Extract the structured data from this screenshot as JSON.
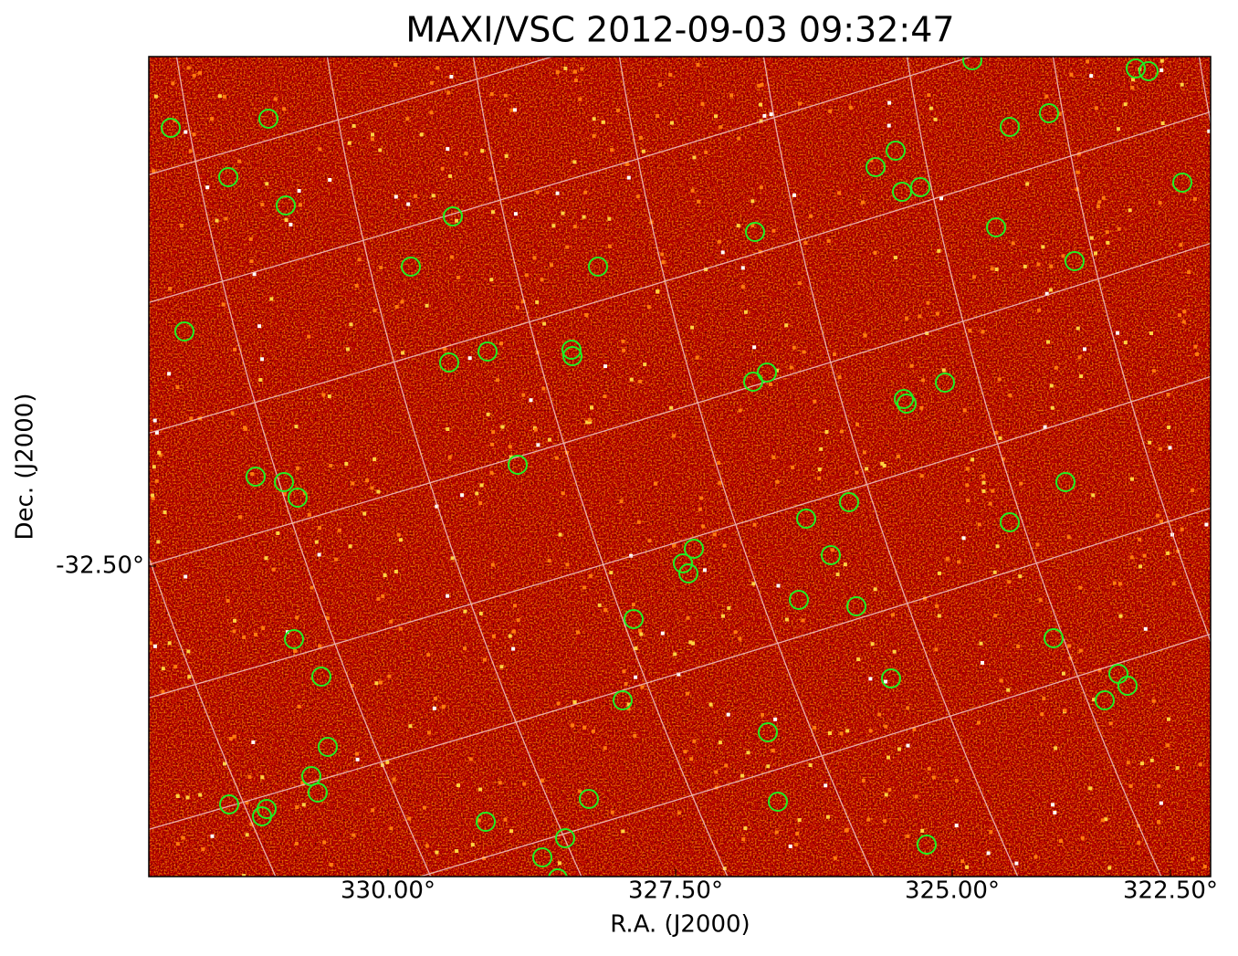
{
  "title": "MAXI/VSC 2012-09-03 09:32:47",
  "x_axis": {
    "label": "R.A. (J2000)",
    "ticks": [
      "330.00°",
      "327.50°",
      "325.00°",
      "322.50°"
    ]
  },
  "y_axis": {
    "label": "Dec. (J2000)",
    "ticks": [
      "-32.50°"
    ]
  }
}
